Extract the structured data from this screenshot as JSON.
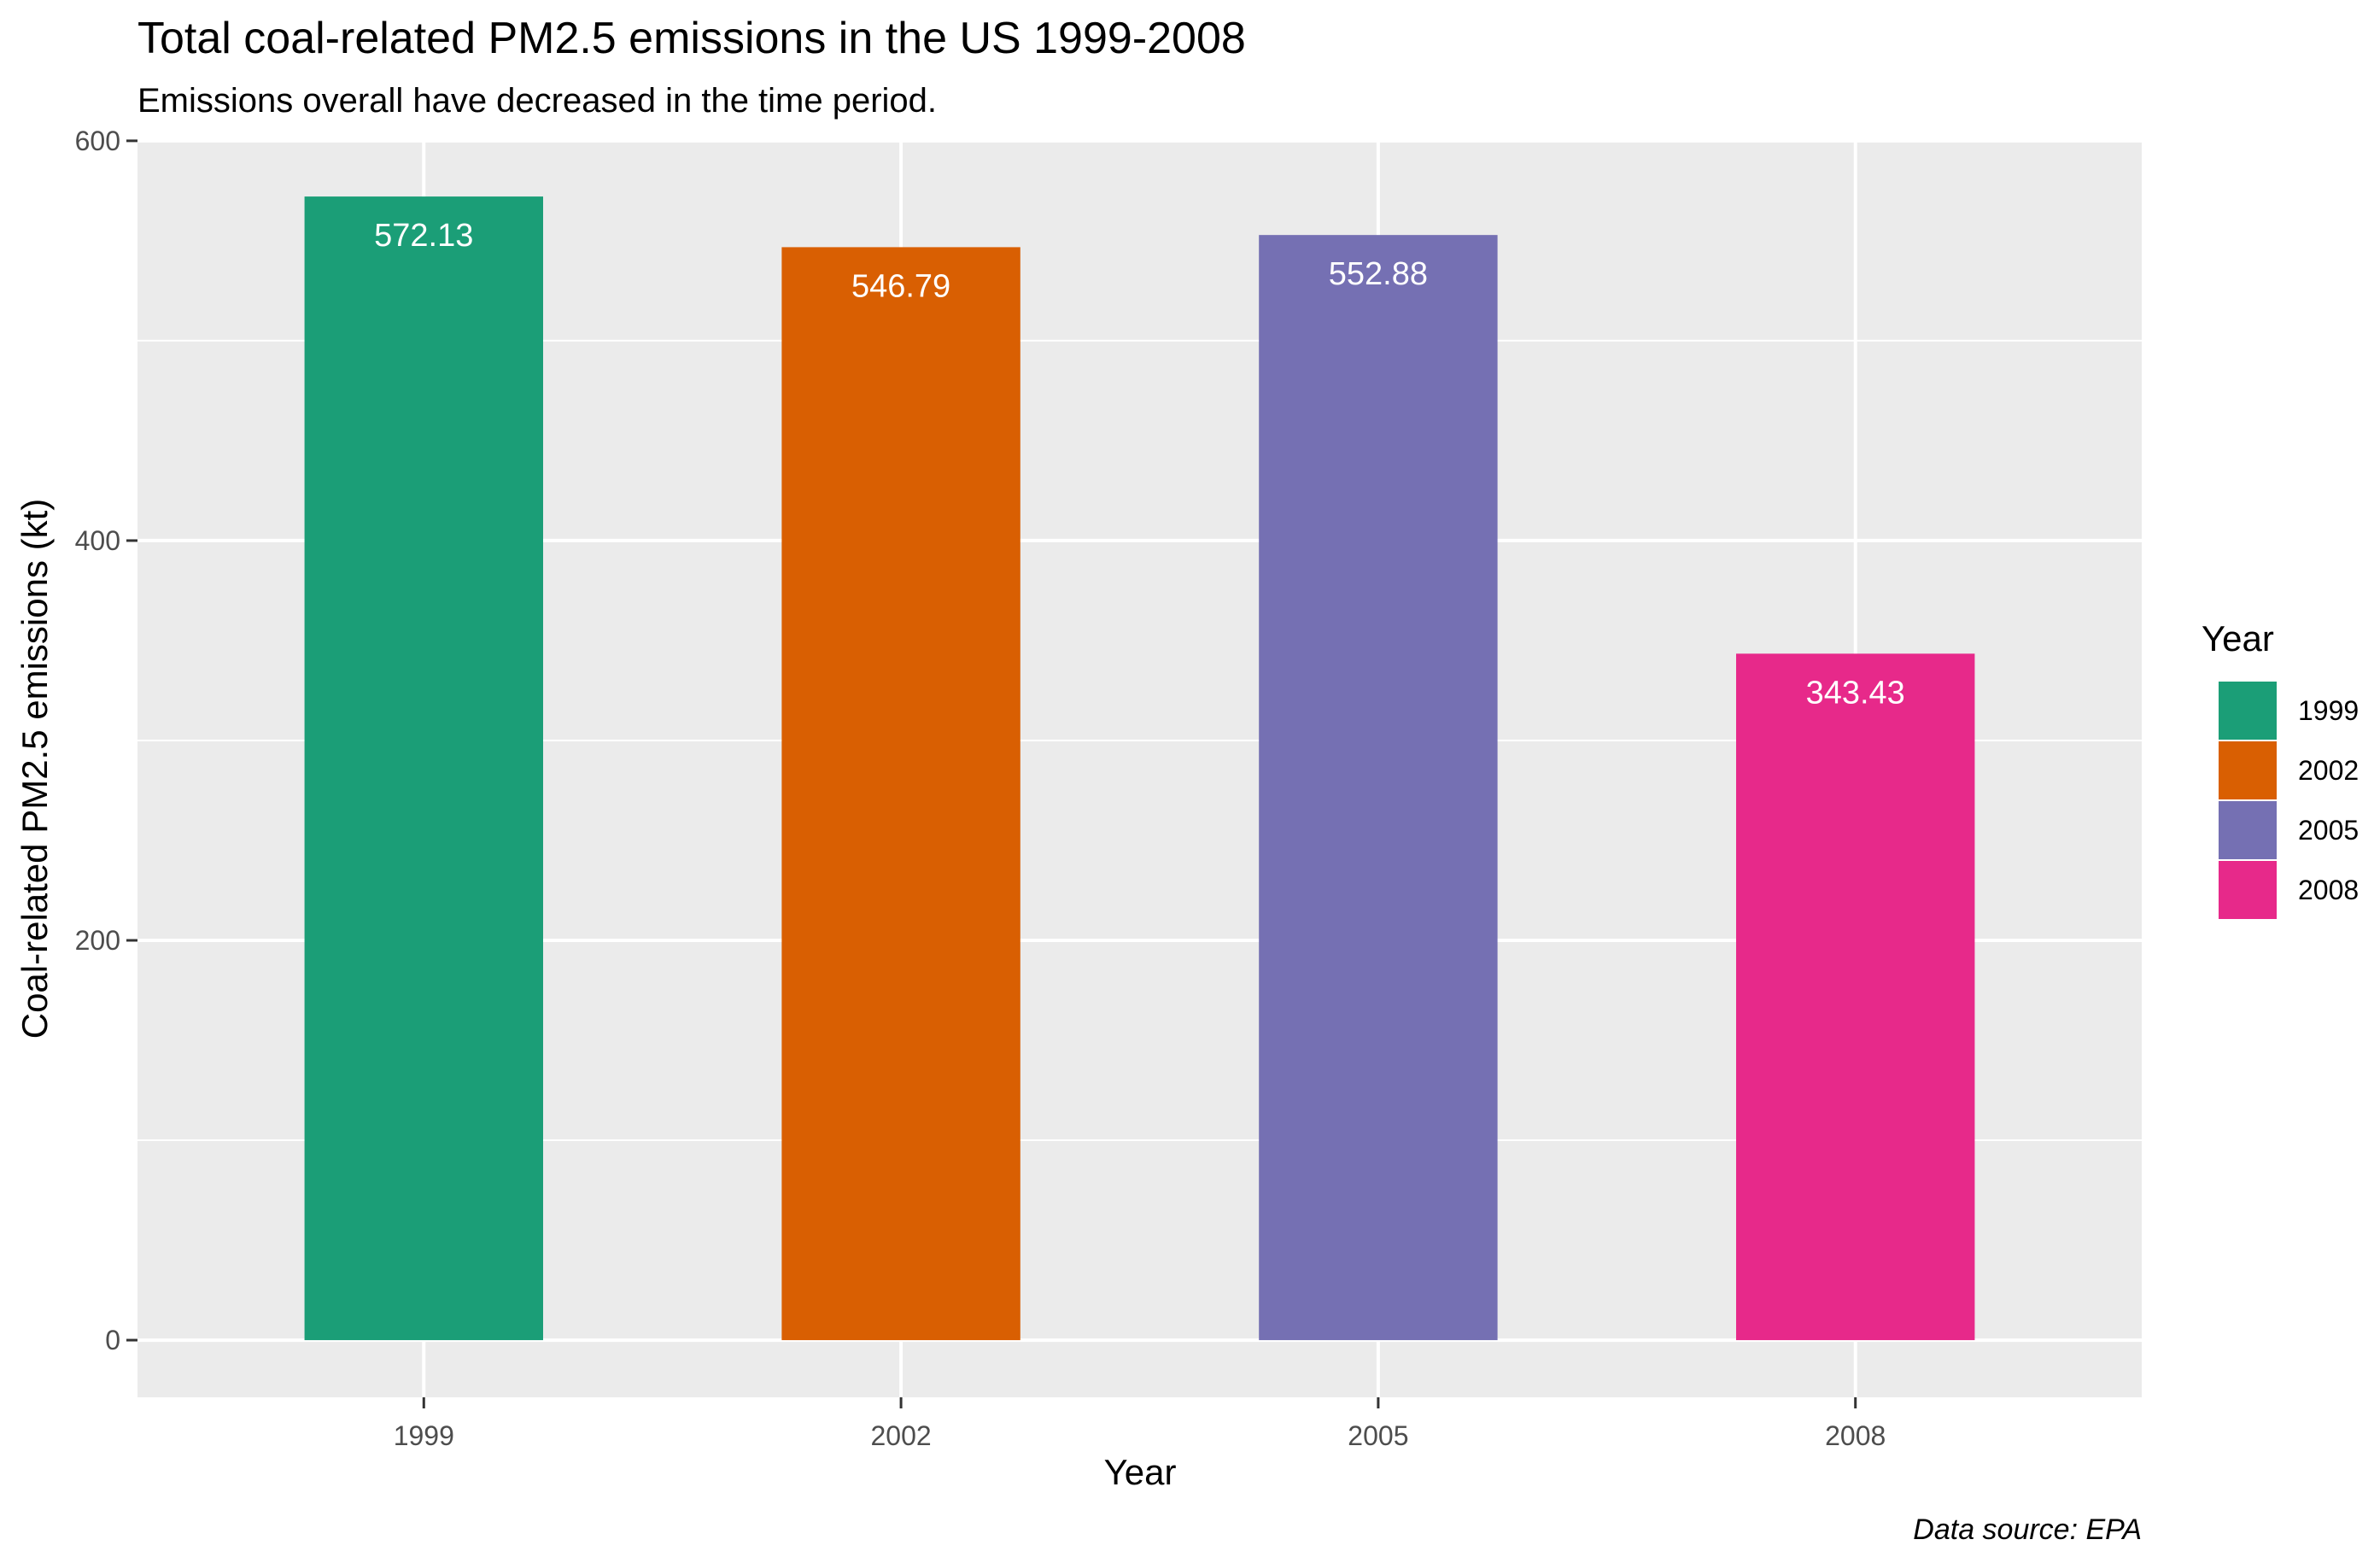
{
  "chart_data": {
    "type": "bar",
    "title": "Total coal-related PM2.5 emissions in the US 1999-2008",
    "subtitle": "Emissions overall have decreased in the time period.",
    "xlabel": "Year",
    "ylabel": "Coal-related PM2.5 emissions (kt)",
    "caption": "Data source: EPA",
    "categories": [
      "1999",
      "2002",
      "2005",
      "2008"
    ],
    "values": [
      572.13,
      546.79,
      552.88,
      343.43
    ],
    "value_labels": [
      "572.13",
      "546.79",
      "552.88",
      "343.43"
    ],
    "colors": [
      "#1B9E77",
      "#D95F02",
      "#7570B3",
      "#E7298A"
    ],
    "ylim": [
      -28.6,
      600.8
    ],
    "yticks": [
      0,
      200,
      400,
      600
    ],
    "y_minor_ticks": [
      100,
      300,
      500
    ],
    "grid": true,
    "panel_background": "#EBEBEB",
    "gridline_color": "#FFFFFF",
    "legend": {
      "title": "Year",
      "position": "right",
      "items": [
        "1999",
        "2002",
        "2005",
        "2008"
      ]
    }
  }
}
